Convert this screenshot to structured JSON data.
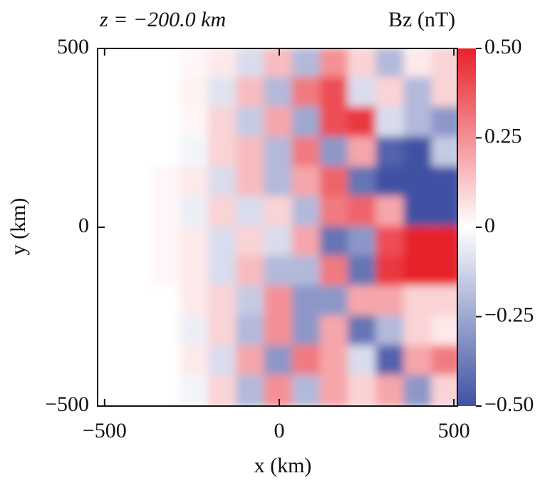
{
  "chart_data": {
    "type": "heatmap",
    "title": "z = −200.0 km",
    "colorbar_label": "Bz (nT)",
    "x_label": "x (km)",
    "y_label": "y (km)",
    "xlim": [
      -520,
      510
    ],
    "ylim": [
      -500,
      500
    ],
    "zlim": [
      -0.5,
      0.5
    ],
    "xticks": [
      {
        "value": -500,
        "label": "−500"
      },
      0,
      500
    ],
    "yticks": [
      {
        "value": -500,
        "label": "−500"
      },
      0,
      500
    ],
    "zticks": [
      {
        "value": -0.5,
        "label": "−0.50"
      },
      {
        "value": -0.25,
        "label": "−0.25"
      },
      0,
      {
        "value": 0.25,
        "label": "0.25"
      },
      {
        "value": 0.5,
        "label": "0.50"
      }
    ],
    "colormap": [
      "#3f51a3",
      "#ffffff",
      "#e8212b"
    ],
    "x": [
      -480,
      -400,
      -320,
      -240,
      -160,
      -80,
      0,
      80,
      160,
      240,
      320,
      400,
      480
    ],
    "y": [
      458,
      375,
      292,
      208,
      125,
      42,
      -42,
      -125,
      -208,
      -292,
      -375,
      -458
    ],
    "z": [
      [
        0,
        0,
        0,
        0.02,
        0.05,
        -0.1,
        0.15,
        -0.2,
        0.25,
        0.1,
        -0.2,
        0.05,
        0.1
      ],
      [
        0,
        0,
        0,
        0.03,
        -0.08,
        0.15,
        -0.2,
        0.3,
        0.4,
        -0.1,
        0.1,
        -0.2,
        0.1
      ],
      [
        0,
        0,
        0,
        0.02,
        0.1,
        -0.15,
        0.2,
        -0.25,
        0.4,
        0.45,
        -0.1,
        -0.2,
        -0.3
      ],
      [
        0,
        0,
        0,
        -0.03,
        0.1,
        0.15,
        -0.2,
        0.3,
        -0.3,
        0.2,
        -0.45,
        -0.5,
        -0.15
      ],
      [
        0,
        0,
        0.02,
        0.05,
        -0.1,
        0.15,
        -0.2,
        0.2,
        0.35,
        -0.4,
        -0.5,
        -0.5,
        -0.5
      ],
      [
        0,
        0,
        0.02,
        -0.05,
        0.1,
        -0.1,
        0.1,
        -0.2,
        0.3,
        0.35,
        0.2,
        -0.5,
        -0.5
      ],
      [
        0,
        0,
        0.02,
        0.05,
        -0.1,
        0.1,
        -0.1,
        0.2,
        -0.4,
        -0.3,
        0.4,
        0.5,
        0.5
      ],
      [
        0,
        0,
        0.02,
        0.05,
        -0.1,
        0.15,
        -0.2,
        -0.2,
        0.3,
        -0.4,
        0.45,
        0.5,
        0.5
      ],
      [
        0,
        0,
        0,
        0.05,
        0.1,
        -0.15,
        0.25,
        -0.3,
        -0.3,
        0.2,
        0.2,
        0.1,
        0.1
      ],
      [
        0,
        0,
        0,
        -0.05,
        0.1,
        -0.2,
        0.25,
        -0.3,
        0.2,
        -0.4,
        -0.2,
        0.1,
        0.05
      ],
      [
        0,
        0,
        0,
        0.05,
        -0.1,
        0.2,
        -0.3,
        0.3,
        0.2,
        -0.1,
        -0.45,
        0.2,
        0.3
      ],
      [
        0,
        0,
        0,
        -0.03,
        0.1,
        -0.2,
        0.25,
        -0.2,
        0.2,
        0.1,
        0.2,
        -0.3,
        0.1
      ]
    ]
  }
}
